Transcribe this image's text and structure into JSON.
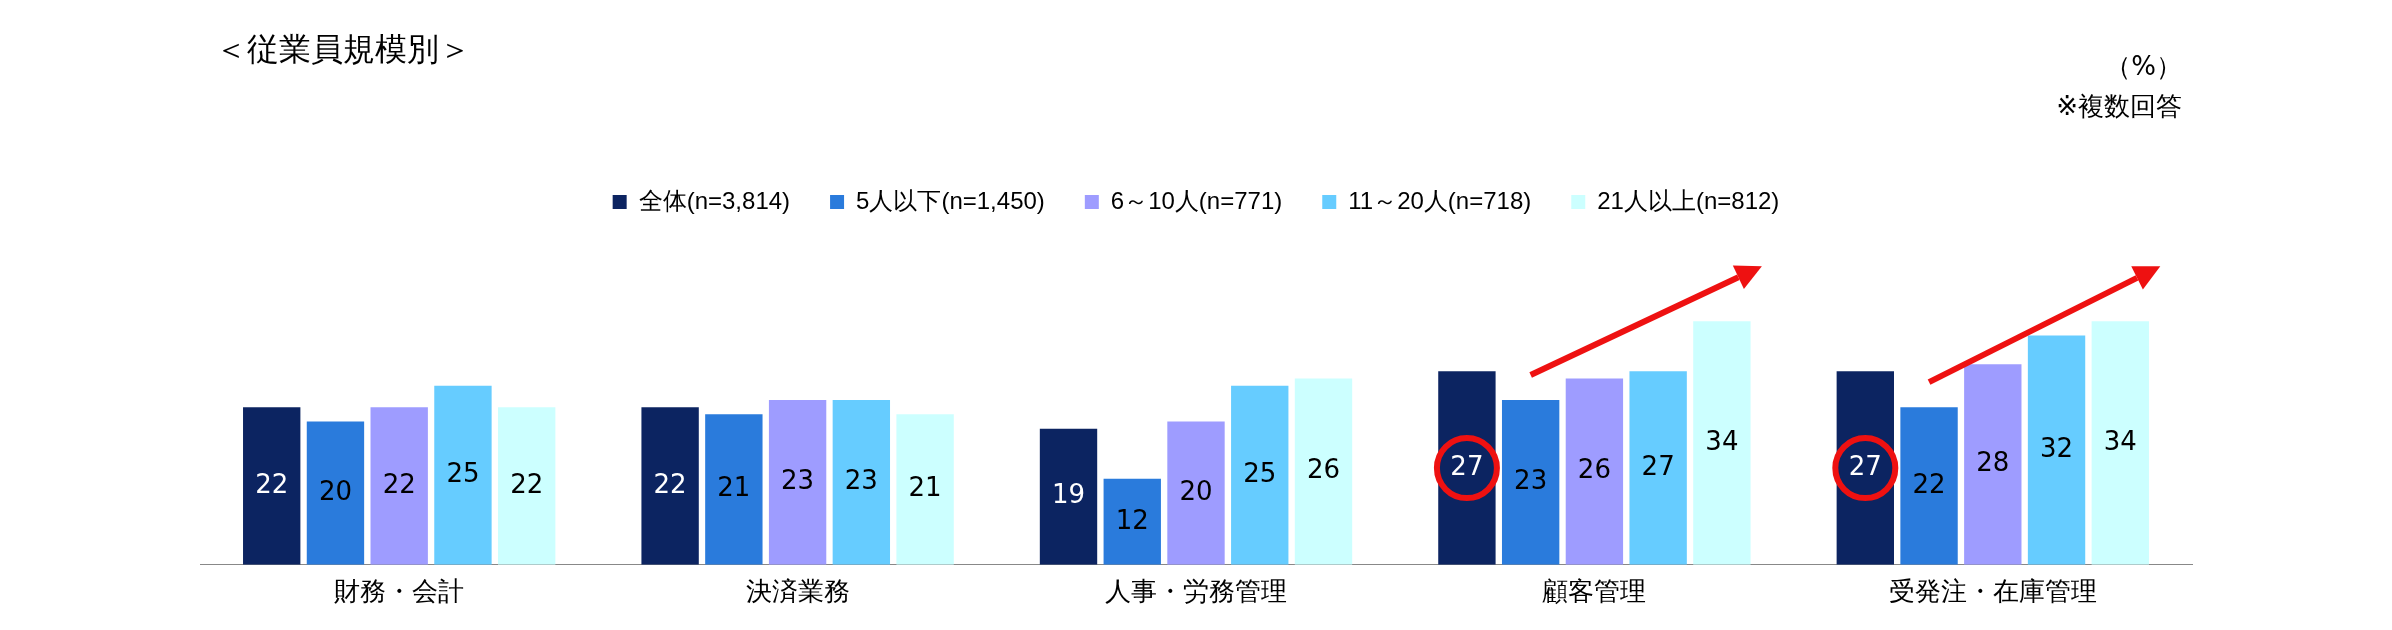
{
  "chart_data": {
    "type": "bar",
    "title": "＜従業員規模別＞",
    "annotations": [
      "（%）",
      "※複数回答"
    ],
    "categories": [
      "財務・会計",
      "決済業務",
      "人事・労務管理",
      "顧客管理",
      "受発注・在庫管理"
    ],
    "series": [
      {
        "name": "全体(n=3,814)",
        "color": "#0c2461",
        "values": [
          22,
          22,
          19,
          27,
          27
        ]
      },
      {
        "name": "5人以下(n=1,450)",
        "color": "#2a7bdc",
        "values": [
          20,
          21,
          12,
          23,
          22
        ]
      },
      {
        "name": "6～10人(n=771)",
        "color": "#9e9cff",
        "values": [
          22,
          23,
          20,
          26,
          28
        ]
      },
      {
        "name": "11～20人(n=718)",
        "color": "#66ccff",
        "values": [
          25,
          23,
          25,
          27,
          32
        ]
      },
      {
        "name": "21人以上(n=812)",
        "color": "#ccffff",
        "values": [
          22,
          21,
          26,
          34,
          34
        ]
      }
    ],
    "data_labels": true,
    "legend": "top",
    "grid": false
  }
}
